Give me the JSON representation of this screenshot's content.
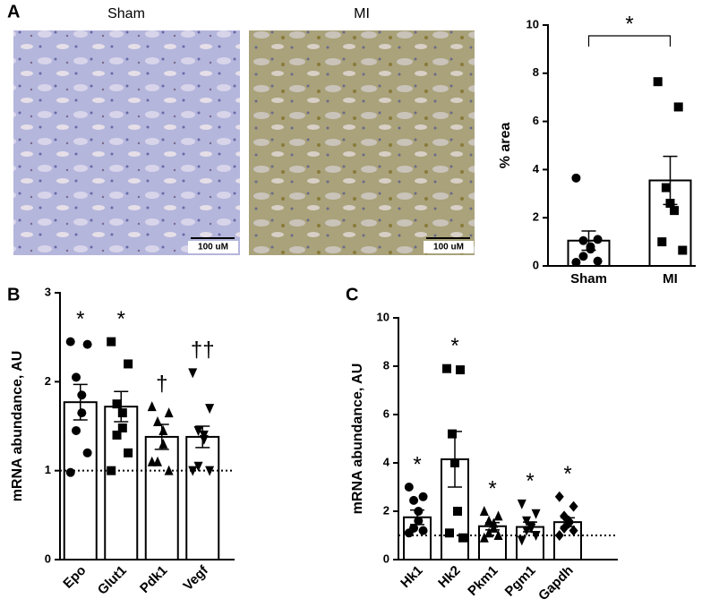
{
  "panel_labels": [
    "A",
    "B",
    "C"
  ],
  "images": [
    {
      "label": "Sham",
      "scale_bar": "100 uM"
    },
    {
      "label": "MI",
      "scale_bar": "100 uM"
    }
  ],
  "chart_data": [
    {
      "type": "bar",
      "categories": [
        "Sham",
        "MI"
      ],
      "values": [
        1.05,
        3.55
      ],
      "errors": [
        0.4,
        1.0
      ],
      "points": [
        [
          3.65,
          1.1,
          1.05,
          0.8,
          0.7,
          0.4,
          0.2,
          0.15
        ],
        [
          7.65,
          6.6,
          3.25,
          2.6,
          2.3,
          1.0,
          0.65
        ]
      ],
      "markers": [
        "circle",
        "square"
      ],
      "color": "#ffffff",
      "ylabel": "% area",
      "ylim": [
        0,
        10
      ],
      "yticks": [
        0,
        2,
        4,
        6,
        8,
        10
      ],
      "bracket_label": "*"
    },
    {
      "type": "bar",
      "categories": [
        "Epo",
        "Glut1",
        "Pdk1",
        "Vegf"
      ],
      "values": [
        1.77,
        1.72,
        1.38,
        1.38
      ],
      "errors": [
        0.2,
        0.17,
        0.14,
        0.12
      ],
      "points": [
        [
          2.45,
          2.42,
          2.05,
          1.85,
          1.65,
          1.45,
          1.2,
          0.98
        ],
        [
          2.45,
          2.2,
          1.75,
          1.65,
          1.48,
          1.4,
          1.2,
          1.0
        ],
        [
          1.72,
          1.65,
          1.55,
          1.45,
          1.3,
          1.1,
          1.0,
          1.1
        ],
        [
          2.1,
          1.7,
          1.45,
          1.4,
          1.35,
          1.05,
          1.0,
          1.0
        ]
      ],
      "markers": [
        "circle",
        "square",
        "triangle",
        "triangle-down"
      ],
      "color": "#ffffff",
      "ylabel": "mRNA abundance, AU",
      "ylim": [
        0,
        3
      ],
      "yticks": [
        0,
        1,
        2,
        3
      ],
      "reference_line": 1,
      "annotations": [
        "*",
        "*",
        "†",
        "††"
      ]
    },
    {
      "type": "bar",
      "categories": [
        "Hk1",
        "Hk2",
        "Pkm1",
        "Pgm1",
        "Gapdh"
      ],
      "values": [
        1.75,
        4.15,
        1.38,
        1.35,
        1.55
      ],
      "errors": [
        0.3,
        1.15,
        0.15,
        0.2,
        0.18
      ],
      "points": [
        [
          3.0,
          2.6,
          2.45,
          2.0,
          1.6,
          1.3,
          1.2,
          1.1
        ],
        [
          7.9,
          7.85,
          5.2,
          4.0,
          2.0,
          1.1,
          0.9
        ],
        [
          2.0,
          1.8,
          1.6,
          1.5,
          1.3,
          1.1,
          1.0,
          0.9
        ],
        [
          2.3,
          1.9,
          1.6,
          1.4,
          1.3,
          1.2,
          1.0,
          0.8
        ],
        [
          2.6,
          2.2,
          1.8,
          1.6,
          1.5,
          1.3,
          1.2,
          1.0
        ]
      ],
      "markers": [
        "circle",
        "square",
        "triangle",
        "triangle-down",
        "diamond"
      ],
      "color": "#ffffff",
      "ylabel": "mRNA abundance, AU",
      "ylim": [
        0,
        10
      ],
      "yticks": [
        0,
        2,
        4,
        6,
        8,
        10
      ],
      "reference_line": 1,
      "annotations": [
        "*",
        "*",
        "*",
        "*",
        "*"
      ]
    }
  ]
}
